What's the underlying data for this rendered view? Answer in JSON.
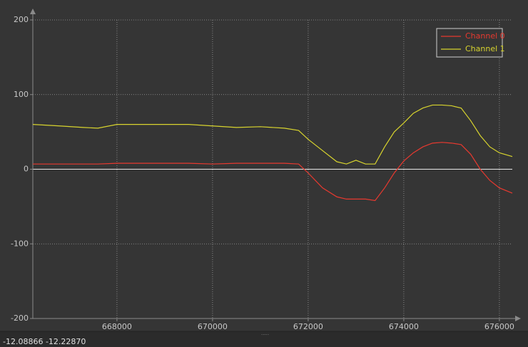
{
  "chart_data": {
    "type": "line",
    "x": [
      666240,
      666800,
      667300,
      667600,
      668000,
      668500,
      669000,
      669500,
      670000,
      670500,
      671000,
      671500,
      671800,
      672000,
      672300,
      672600,
      672800,
      673000,
      673200,
      673400,
      673600,
      673800,
      674000,
      674200,
      674400,
      674600,
      674800,
      675000,
      675200,
      675400,
      675600,
      675800,
      676000,
      676270
    ],
    "series": [
      {
        "name": "Channel 0",
        "color": "#e8392f",
        "values": [
          7,
          7,
          7,
          7,
          8,
          8,
          8,
          8,
          7,
          8,
          8,
          8,
          7,
          -5,
          -25,
          -37,
          -40,
          -40,
          -40,
          -42,
          -25,
          -5,
          11,
          22,
          30,
          35,
          36,
          35,
          33,
          20,
          0,
          -15,
          -25,
          -32
        ]
      },
      {
        "name": "Channel 1",
        "color": "#d8d42e",
        "values": [
          60,
          58,
          56,
          55,
          60,
          60,
          60,
          60,
          58,
          56,
          57,
          55,
          52,
          40,
          25,
          10,
          7,
          12,
          7,
          7,
          30,
          50,
          62,
          75,
          82,
          86,
          86,
          85,
          82,
          65,
          45,
          30,
          22,
          17
        ]
      }
    ],
    "xlim": [
      666240,
      676270
    ],
    "ylim": [
      -200,
      200
    ],
    "xticks": [
      668000,
      670000,
      672000,
      674000,
      676000
    ],
    "yticks": [
      -200,
      -100,
      0,
      100,
      200
    ],
    "grid": true,
    "legend": "upper right"
  },
  "status_bar": "-12.08866 -12.22870"
}
